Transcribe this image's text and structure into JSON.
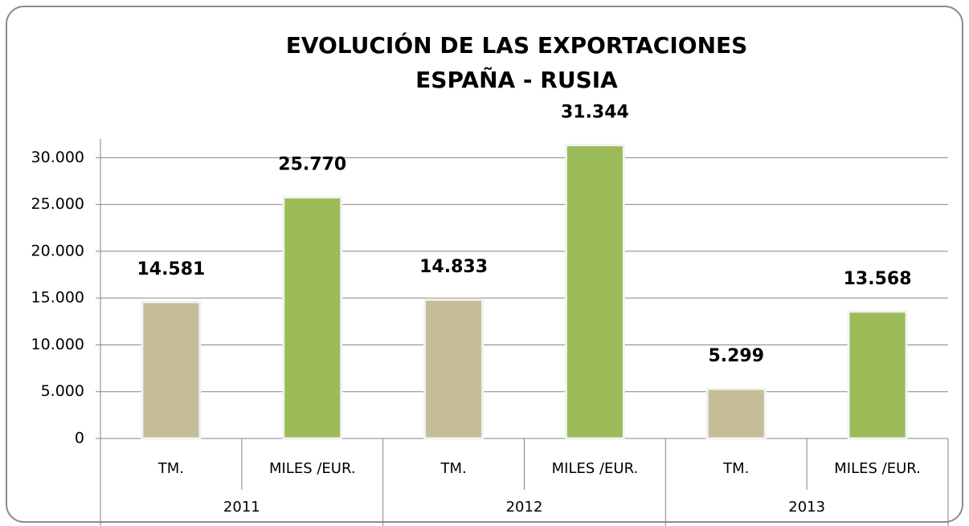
{
  "chart_data": {
    "type": "bar",
    "title": [
      "EVOLUCIÓN DE LAS EXPORTACIONES",
      "ESPAÑA - RUSIA"
    ],
    "categories": [
      "TM.",
      "MILES /EUR.",
      "TM.",
      "MILES /EUR.",
      "TM.",
      "MILES /EUR."
    ],
    "groups": [
      "2011",
      "2012",
      "2013"
    ],
    "values": [
      14581,
      25770,
      14833,
      31344,
      5299,
      13568
    ],
    "value_labels": [
      "14.581",
      "25.770",
      "14.833",
      "31.344",
      "5.299",
      "13.568"
    ],
    "colors": [
      "#c4bd97",
      "#9bbb59",
      "#c4bd97",
      "#9bbb59",
      "#c4bd97",
      "#9bbb59"
    ],
    "ylim": [
      0,
      32000
    ],
    "yticks": [
      0,
      {
        "value": 5000,
        "label": "5.000"
      },
      {
        "value": 10000,
        "label": "10.000"
      },
      {
        "value": 15000,
        "label": "15.000"
      },
      {
        "value": 20000,
        "label": "20.000"
      },
      {
        "value": 25000,
        "label": "25.000"
      },
      {
        "value": 30000,
        "label": "30.000"
      }
    ],
    "grid": true
  }
}
